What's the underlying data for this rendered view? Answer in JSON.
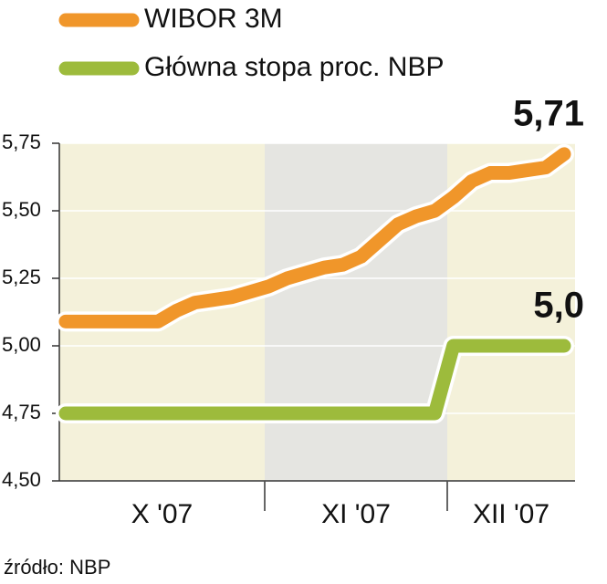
{
  "chart_data": {
    "type": "line",
    "months": [
      "X '07",
      "XI '07",
      "XII '07"
    ],
    "series": [
      {
        "name": "WIBOR 3M",
        "color": "#f0962a",
        "values": [
          5.09,
          5.09,
          5.09,
          5.09,
          5.09,
          5.09,
          5.13,
          5.16,
          5.17,
          5.18,
          5.2,
          5.22,
          5.25,
          5.27,
          5.29,
          5.3,
          5.33,
          5.39,
          5.45,
          5.48,
          5.5,
          5.55,
          5.61,
          5.64,
          5.64,
          5.65,
          5.66,
          5.71
        ]
      },
      {
        "name": "Główna stopa proc. NBP",
        "color": "#9dbb3c",
        "values": [
          4.75,
          4.75,
          4.75,
          4.75,
          4.75,
          4.75,
          4.75,
          4.75,
          4.75,
          4.75,
          4.75,
          4.75,
          4.75,
          4.75,
          4.75,
          4.75,
          4.75,
          4.75,
          4.75,
          4.75,
          4.75,
          5.0,
          5.0,
          5.0,
          5.0,
          5.0,
          5.0,
          5.0
        ]
      }
    ],
    "annotations": [
      {
        "text": "5,71",
        "value": 5.71
      },
      {
        "text": "5,0",
        "value": 5.0
      }
    ],
    "ylim": [
      4.5,
      5.75
    ],
    "yticks": [
      {
        "value": 4.5,
        "label": "4,50"
      },
      {
        "value": 4.75,
        "label": "4,75"
      },
      {
        "value": 5.0,
        "label": "5,00"
      },
      {
        "value": 5.25,
        "label": "5,25"
      },
      {
        "value": 5.5,
        "label": "5,50"
      },
      {
        "value": 5.75,
        "label": "5,75"
      }
    ],
    "source": "źródło: NBP"
  }
}
